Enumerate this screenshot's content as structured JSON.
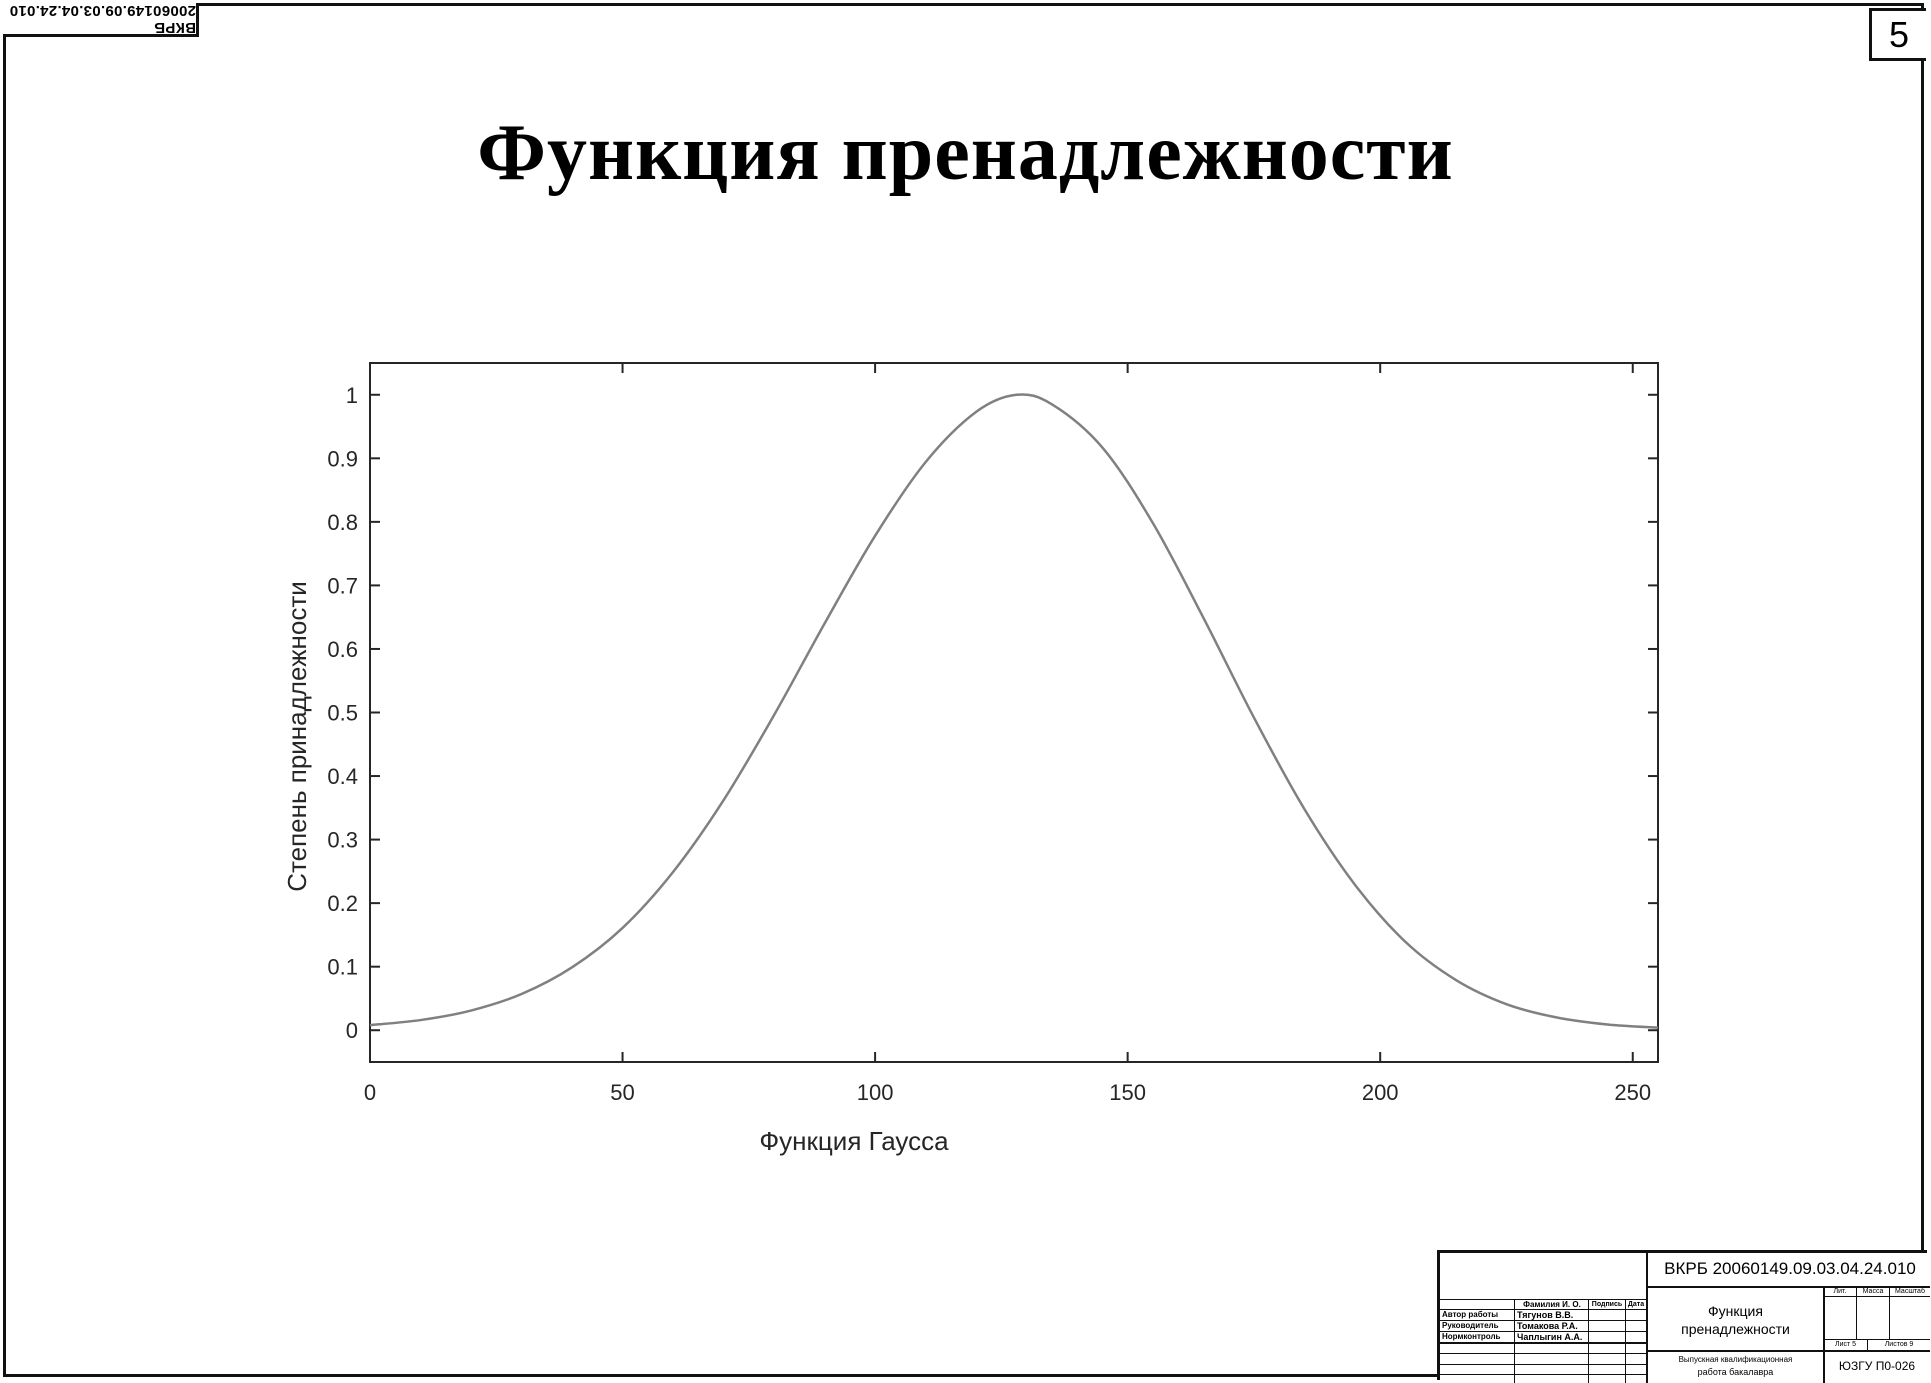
{
  "document": {
    "code_stamp": "ВКРБ 20060149.09.03.04.24.010",
    "page_number": "5",
    "slide_title": "Функция пренадлежности"
  },
  "chart_data": {
    "type": "line",
    "title": "",
    "xlabel": "Функция Гаусса",
    "ylabel": "Степень принадлежности",
    "xlim": [
      0,
      255
    ],
    "ylim": [
      -0.05,
      1.05
    ],
    "xticks": [
      0,
      50,
      100,
      150,
      200,
      250
    ],
    "xtick_labels": [
      "0",
      "50",
      "100",
      "150",
      "200",
      "250"
    ],
    "yticks": [
      0,
      0.1,
      0.2,
      0.3,
      0.4,
      0.5,
      0.6,
      0.7,
      0.8,
      0.9,
      1
    ],
    "ytick_labels": [
      "0",
      "0.1",
      "0.2",
      "0.3",
      "0.4",
      "0.5",
      "0.6",
      "0.7",
      "0.8",
      "0.9",
      "1"
    ],
    "grid": false,
    "series": [
      {
        "color": "#808080",
        "x": [
          0,
          10,
          20,
          30,
          40,
          50,
          60,
          70,
          80,
          90,
          100,
          110,
          120,
          128,
          135,
          145,
          155,
          165,
          175,
          185,
          195,
          205,
          215,
          225,
          235,
          245,
          255
        ],
        "y": [
          0.008,
          0.016,
          0.031,
          0.057,
          0.099,
          0.161,
          0.249,
          0.362,
          0.496,
          0.64,
          0.778,
          0.894,
          0.973,
          1.0,
          0.985,
          0.917,
          0.798,
          0.649,
          0.492,
          0.348,
          0.229,
          0.139,
          0.079,
          0.041,
          0.02,
          0.009,
          0.004
        ]
      }
    ]
  },
  "title_block": {
    "code": "ВКРБ  20060149.09.03.04.24.010",
    "col_headers": {
      "name": "Фамилия И. О.",
      "sign": "Подпись",
      "date": "Дата"
    },
    "roles": [
      {
        "role": "Автор работы",
        "name": "Тягунов В.В."
      },
      {
        "role": "Руководитель",
        "name": "Томакова Р.А."
      },
      {
        "role": "Нормконтроль",
        "name": "Чаплыгин А.А."
      }
    ],
    "doc_title_line1": "Функция",
    "doc_title_line2": "пренадлежности",
    "work_type_line1": "Выпускная квалификационная",
    "work_type_line2": "работа бакалавра",
    "lit_header": "Лит.",
    "mass_header": "Масса",
    "scale_header": "Масштаб",
    "sheet": "Лист 5",
    "sheets": "Листов 9",
    "org": "ЮЗГУ П0-026"
  }
}
